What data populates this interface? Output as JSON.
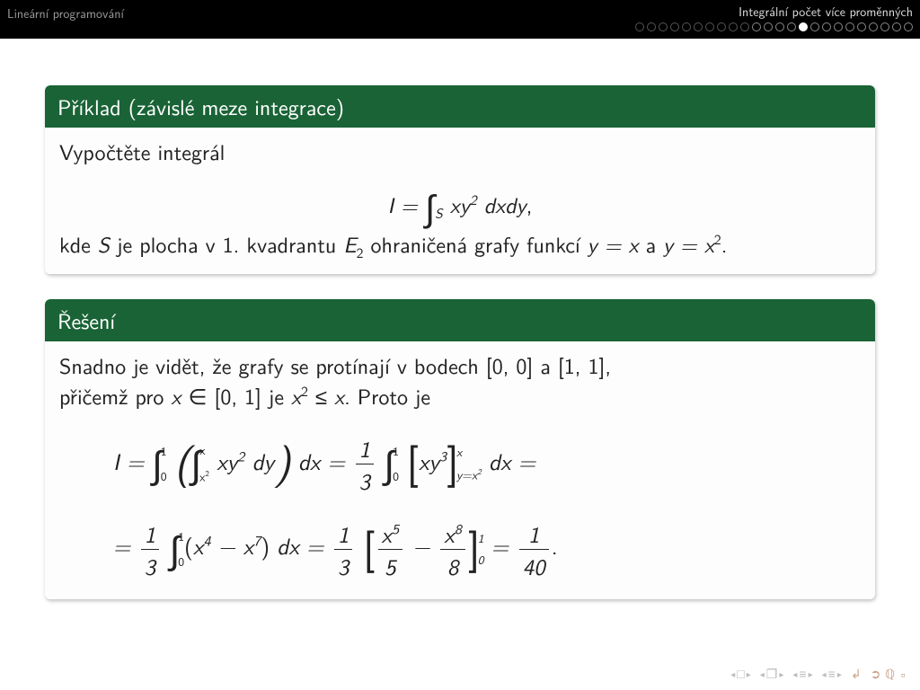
{
  "header": {
    "left": "Lineární programování",
    "right": "Integrální počet více proměnných",
    "progress": {
      "total": 24,
      "current_index": 14,
      "dim_until": 10
    }
  },
  "colors": {
    "block_title_bg": "#1a6336",
    "block_title_fg": "#ffffff",
    "block_body_bg": "#fdfdfd",
    "page_bg": "#ffffff",
    "header_bg": "#000000",
    "nav_symbol": "#c9a38a",
    "nav_arrow": "#bbbbbb"
  },
  "block1": {
    "title": "Příklad (závislé meze integrace)",
    "line1": "Vypočtěte integrál",
    "formula_html": "I = <span class=\"int\">∫</span><sub>S</sub> xy<sup>2</sup> dxdy<span class=\"rom\">,</span>",
    "line2_html": "kde <span class=\"math\">S</span> je plocha v 1. kvadrantu <span class=\"math\">E</span><sub>2</sub> ohraničená grafy funkcí <span class=\"math\">y = x</span> a <span class=\"math\">y = x</span><sup>2</sup>."
  },
  "block2": {
    "title": "Řešení",
    "intro": "Snadno je vidět, že grafy se protínají v bodech [0, 0] a [1, 1], přičemž pro x ∈ [0, 1] je x² ≤ x. Proto je",
    "intro_html": "Snadno je vidět, že grafy se protínají v bodech <span class=\"rom\">[0, 0]</span> a <span class=\"rom\">[1, 1]</span>,<br>přičemž pro <span class=\"math\">x</span> ∈ <span class=\"rom\">[0, 1]</span> je <span class=\"math\">x</span><sup>2</sup> ≤ <span class=\"math\">x</span>. Proto je",
    "eq1_html": "I = <span class=\"int\">∫</span><span class=\"lim-stack\"><span class=\"u\">1</span><span class=\"l\">0</span></span> <span class=\"big\">(</span><span class=\"int\">∫</span><span class=\"lim-stack\"><span class=\"u\">x</span><span class=\"l\">x<sup>2</sup></span></span> xy<sup>2</sup> dy<span class=\"big\">)</span> dx = <span class=\"frac\"><span class=\"n\">1</span><span class=\"d\">3</span></span> <span class=\"int\">∫</span><span class=\"lim-stack\"><span class=\"u\">1</span><span class=\"l\">0</span></span> <span class=\"big rom\">[</span>xy<sup>3</sup><span class=\"big rom\">]</span><span class=\"bracket-stack\"><span class=\"u\">x</span><span class=\"l\">y=x<sup>2</sup></span></span> dx =",
    "eq2_html": "= <span class=\"frac\"><span class=\"n\">1</span><span class=\"d\">3</span></span> <span class=\"int\">∫</span><span class=\"lim-stack\"><span class=\"u\">1</span><span class=\"l\">0</span></span><span class=\"rom\">(</span>x<sup>4</sup> − x<sup>7</sup><span class=\"rom\">)</span> dx = <span class=\"frac\"><span class=\"n\">1</span><span class=\"d\">3</span></span> <span class=\"big rom\">[</span><span class=\"frac\"><span class=\"n\">x<sup>5</sup></span><span class=\"d\">5</span></span> − <span class=\"frac\"><span class=\"n\">x<sup>8</sup></span><span class=\"d\">8</span></span><span class=\"big rom\">]</span><span class=\"bracket-stack\"><span class=\"u\">1</span><span class=\"l\">0</span></span> = <span class=\"frac\"><span class=\"n\">1</span><span class=\"d\">40</span></span><span class=\"rom\">.</span>"
  },
  "nav": {
    "items": [
      "slide-nav",
      "frame-nav",
      "subsection-nav",
      "section-nav",
      "presentation-end",
      "circular-nav"
    ]
  }
}
